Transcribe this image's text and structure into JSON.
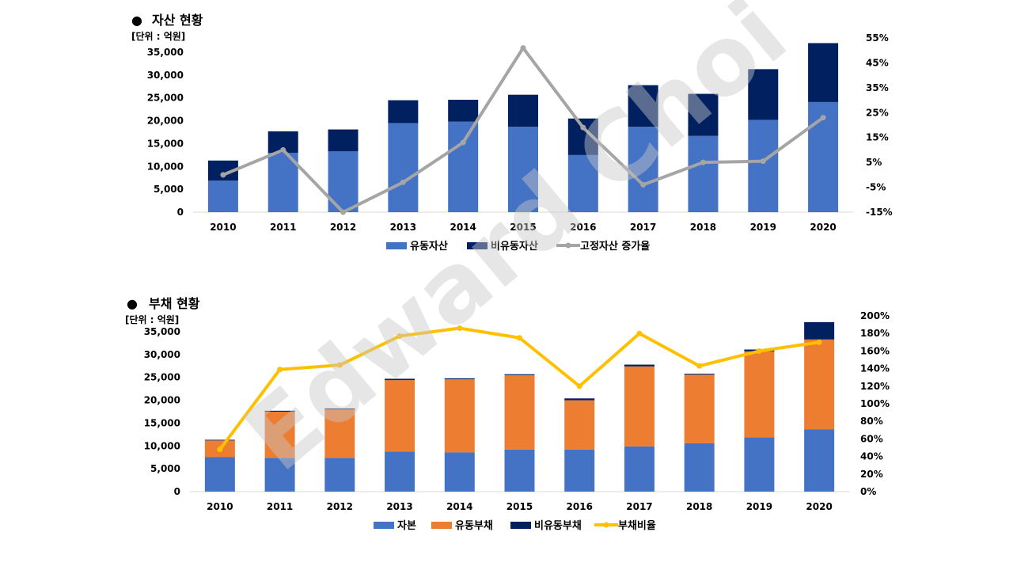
{
  "watermark": "Edward Choi",
  "colors": {
    "current_asset": "#4472C4",
    "noncurrent_asset": "#002060",
    "asset_growth_line": "#A5A5A5",
    "equity": "#4472C4",
    "current_liability": "#ED7D31",
    "noncurrent_liability": "#002060",
    "debt_ratio_line": "#FFC000"
  },
  "chart_data": [
    {
      "type": "bar",
      "title": "자산 현황",
      "title_bullet": "●",
      "unit_label": "[단위 : 억원]",
      "stacked": true,
      "categories": [
        "2010",
        "2011",
        "2012",
        "2013",
        "2014",
        "2015",
        "2016",
        "2017",
        "2018",
        "2019",
        "2020"
      ],
      "series": [
        {
          "name": "유동자산",
          "kind": "bar",
          "axis": "left",
          "values": [
            6900,
            13000,
            13300,
            19500,
            19800,
            18700,
            12500,
            18700,
            16700,
            20200,
            24100
          ]
        },
        {
          "name": "비유동자산",
          "kind": "bar",
          "axis": "left",
          "values": [
            4400,
            4700,
            4800,
            5000,
            4800,
            7000,
            8000,
            9100,
            9200,
            11100,
            12900
          ]
        },
        {
          "name": "고정자산 증가율",
          "kind": "line",
          "axis": "right",
          "values": [
            0,
            10,
            -15,
            -3,
            13,
            51,
            19,
            -4,
            5,
            5.5,
            23
          ]
        }
      ],
      "y_left": {
        "min": 0,
        "max": 35000,
        "step": 5000,
        "ticks": [
          "0",
          "5,000",
          "10,000",
          "15,000",
          "20,000",
          "25,000",
          "30,000",
          "35,000"
        ]
      },
      "y_right": {
        "min": -15,
        "max": 55,
        "step": 10,
        "ticks": [
          "-15%",
          "-5%",
          "5%",
          "15%",
          "25%",
          "35%",
          "45%",
          "55%"
        ]
      },
      "legend": [
        {
          "name": "유동자산",
          "marker": "rect"
        },
        {
          "name": "비유동자산",
          "marker": "rect"
        },
        {
          "name": "고정자산 증가율",
          "marker": "line"
        }
      ],
      "legend_position": "bottom"
    },
    {
      "type": "bar",
      "title": "부채 현황",
      "title_bullet": "●",
      "unit_label": "[단위 : 억원]",
      "stacked": true,
      "categories": [
        "2010",
        "2011",
        "2012",
        "2013",
        "2014",
        "2015",
        "2016",
        "2017",
        "2018",
        "2019",
        "2020"
      ],
      "series": [
        {
          "name": "자본",
          "kind": "bar",
          "axis": "left",
          "values": [
            7600,
            7400,
            7400,
            8800,
            8600,
            9200,
            9200,
            9900,
            10600,
            11900,
            13600
          ]
        },
        {
          "name": "유동부채",
          "kind": "bar",
          "axis": "left",
          "values": [
            3600,
            10100,
            10600,
            15600,
            16000,
            16300,
            10800,
            17500,
            15000,
            18800,
            19700
          ]
        },
        {
          "name": "비유동부채",
          "kind": "bar",
          "axis": "left",
          "values": [
            150,
            200,
            200,
            300,
            200,
            200,
            400,
            400,
            200,
            400,
            3800
          ]
        },
        {
          "name": "부채비율",
          "kind": "line",
          "axis": "right",
          "values": [
            48,
            139,
            144,
            177,
            186,
            175,
            120,
            180,
            143,
            160,
            170
          ]
        }
      ],
      "y_left": {
        "min": 0,
        "max": 35000,
        "step": 5000,
        "ticks": [
          "0",
          "5,000",
          "10,000",
          "15,000",
          "20,000",
          "25,000",
          "30,000",
          "35,000"
        ]
      },
      "y_right": {
        "min": 0,
        "max": 200,
        "step": 20,
        "ticks": [
          "0%",
          "20%",
          "40%",
          "60%",
          "80%",
          "100%",
          "120%",
          "140%",
          "160%",
          "180%",
          "200%"
        ]
      },
      "legend": [
        {
          "name": "자본",
          "marker": "rect"
        },
        {
          "name": "유동부채",
          "marker": "rect"
        },
        {
          "name": "비유동부채",
          "marker": "rect"
        },
        {
          "name": "부채비율",
          "marker": "line"
        }
      ],
      "legend_position": "bottom"
    }
  ]
}
